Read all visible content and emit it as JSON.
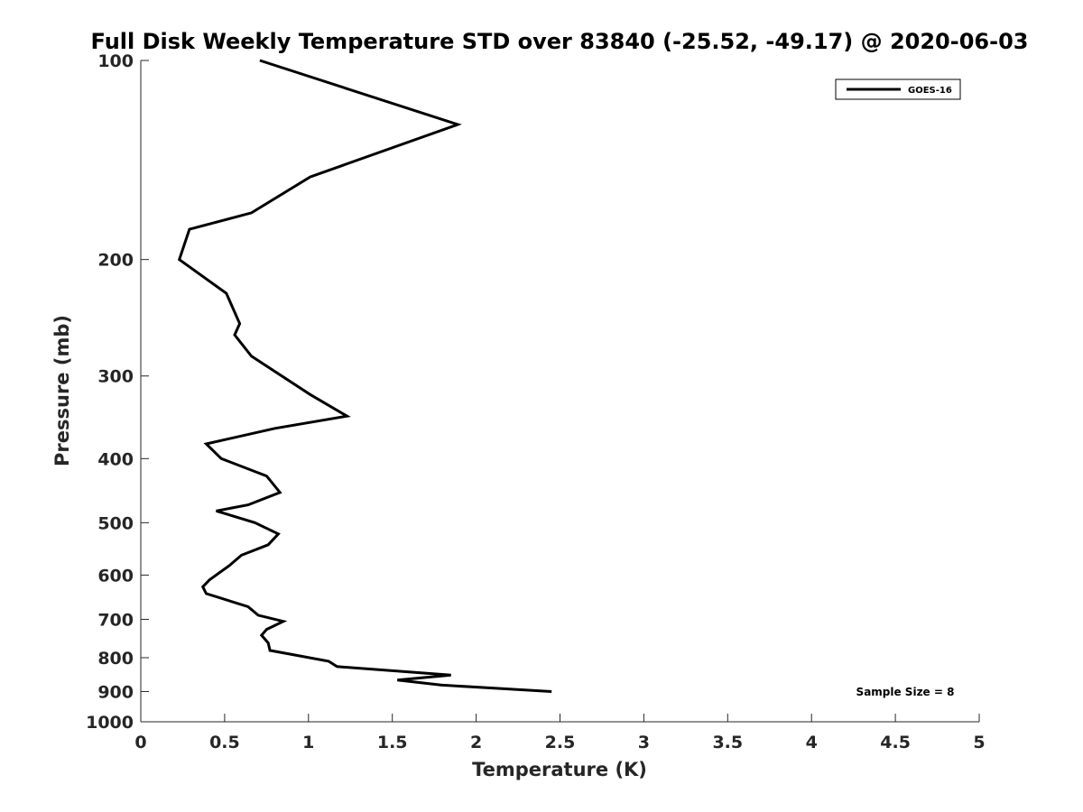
{
  "chart_data": {
    "type": "line",
    "title": "Full Disk Weekly Temperature STD over 83840 (-25.52, -49.17) @ 2020-06-03",
    "xlabel": "Temperature (K)",
    "ylabel": "Pressure (mb)",
    "xlim": [
      0,
      5
    ],
    "ylim": [
      100,
      1000
    ],
    "y_scale": "log",
    "y_reversed": true,
    "grid": false,
    "legend_position": "top-right",
    "x_ticks": [
      "0",
      "0.5",
      "1",
      "1.5",
      "2",
      "2.5",
      "3",
      "3.5",
      "4",
      "4.5",
      "5"
    ],
    "y_ticks": [
      "100",
      "200",
      "300",
      "400",
      "500",
      "600",
      "700",
      "800",
      "900",
      "1000"
    ],
    "series": [
      {
        "name": "GOES-16",
        "color": "#000000",
        "points": [
          [
            0.71,
            100
          ],
          [
            1.89,
            125
          ],
          [
            1.01,
            150
          ],
          [
            0.66,
            170
          ],
          [
            0.29,
            180
          ],
          [
            0.23,
            200
          ],
          [
            0.51,
            225
          ],
          [
            0.59,
            250
          ],
          [
            0.56,
            260
          ],
          [
            0.66,
            280
          ],
          [
            1.01,
            320
          ],
          [
            1.23,
            345
          ],
          [
            0.8,
            360
          ],
          [
            0.39,
            380
          ],
          [
            0.48,
            400
          ],
          [
            0.75,
            425
          ],
          [
            0.83,
            450
          ],
          [
            0.64,
            470
          ],
          [
            0.45,
            480
          ],
          [
            0.68,
            500
          ],
          [
            0.82,
            520
          ],
          [
            0.76,
            540
          ],
          [
            0.6,
            560
          ],
          [
            0.53,
            580
          ],
          [
            0.41,
            610
          ],
          [
            0.37,
            625
          ],
          [
            0.39,
            640
          ],
          [
            0.64,
            670
          ],
          [
            0.7,
            690
          ],
          [
            0.85,
            705
          ],
          [
            0.75,
            725
          ],
          [
            0.72,
            740
          ],
          [
            0.76,
            760
          ],
          [
            0.77,
            780
          ],
          [
            1.12,
            810
          ],
          [
            1.17,
            825
          ],
          [
            1.85,
            850
          ],
          [
            1.53,
            865
          ],
          [
            1.79,
            880
          ],
          [
            2.45,
            900
          ]
        ]
      }
    ],
    "annotation": "Sample Size = 8"
  }
}
